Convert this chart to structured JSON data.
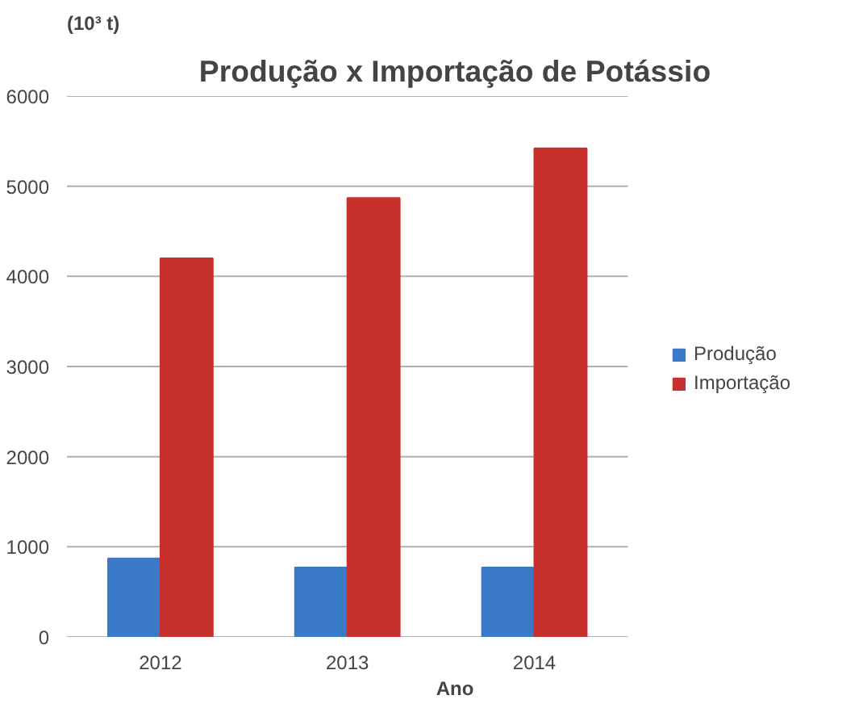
{
  "chart_data": {
    "type": "bar",
    "title": "Produção x Importação de Potássio",
    "ylabel": "(10³ t)",
    "xlabel": "Ano",
    "categories": [
      "2012",
      "2013",
      "2014"
    ],
    "series": [
      {
        "name": "Produção",
        "color": "#3a78c8",
        "values": [
          870,
          770,
          770
        ]
      },
      {
        "name": "Importação",
        "color": "#c8302e",
        "values": [
          4200,
          4870,
          5420
        ]
      }
    ],
    "ylim": [
      0,
      6000
    ],
    "yticks": [
      0,
      1000,
      2000,
      3000,
      4000,
      5000,
      6000
    ],
    "grid": "y",
    "legend": "right"
  }
}
